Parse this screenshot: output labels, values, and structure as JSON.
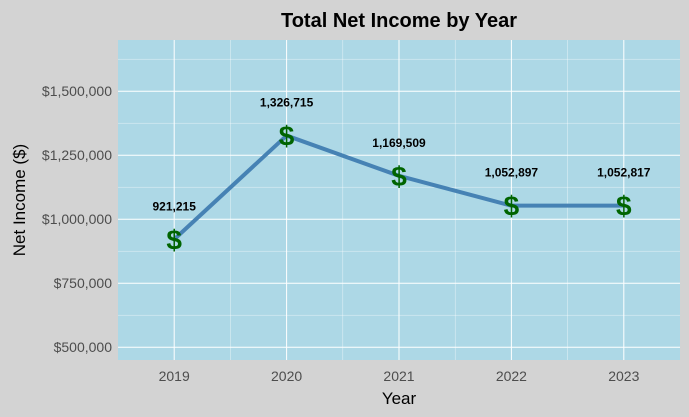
{
  "chart_data": {
    "type": "line",
    "title": "Total Net Income by Year",
    "xlabel": "Year",
    "ylabel": "Net Income ($)",
    "x": [
      "2019",
      "2020",
      "2021",
      "2022",
      "2023"
    ],
    "series": [
      {
        "values": [
          921215,
          1326715,
          1169509,
          1052897,
          1052817
        ]
      }
    ],
    "data_labels": [
      "921,215",
      "1,326,715",
      "1,169,509",
      "1,052,897",
      "1,052,817"
    ],
    "marker_symbol": "$",
    "ylim": [
      450000,
      1700000
    ],
    "yticks": [
      500000,
      750000,
      1000000,
      1250000,
      1500000
    ],
    "ytick_labels": [
      "$500,000",
      "$750,000",
      "$1,000,000",
      "$1,250,000",
      "$1,500,000"
    ],
    "grid": true,
    "colors": {
      "background": "#d3d3d3",
      "panel": "#add8e6",
      "grid": "#ffffff",
      "line": "#4682b4",
      "marker": "#006400"
    }
  }
}
